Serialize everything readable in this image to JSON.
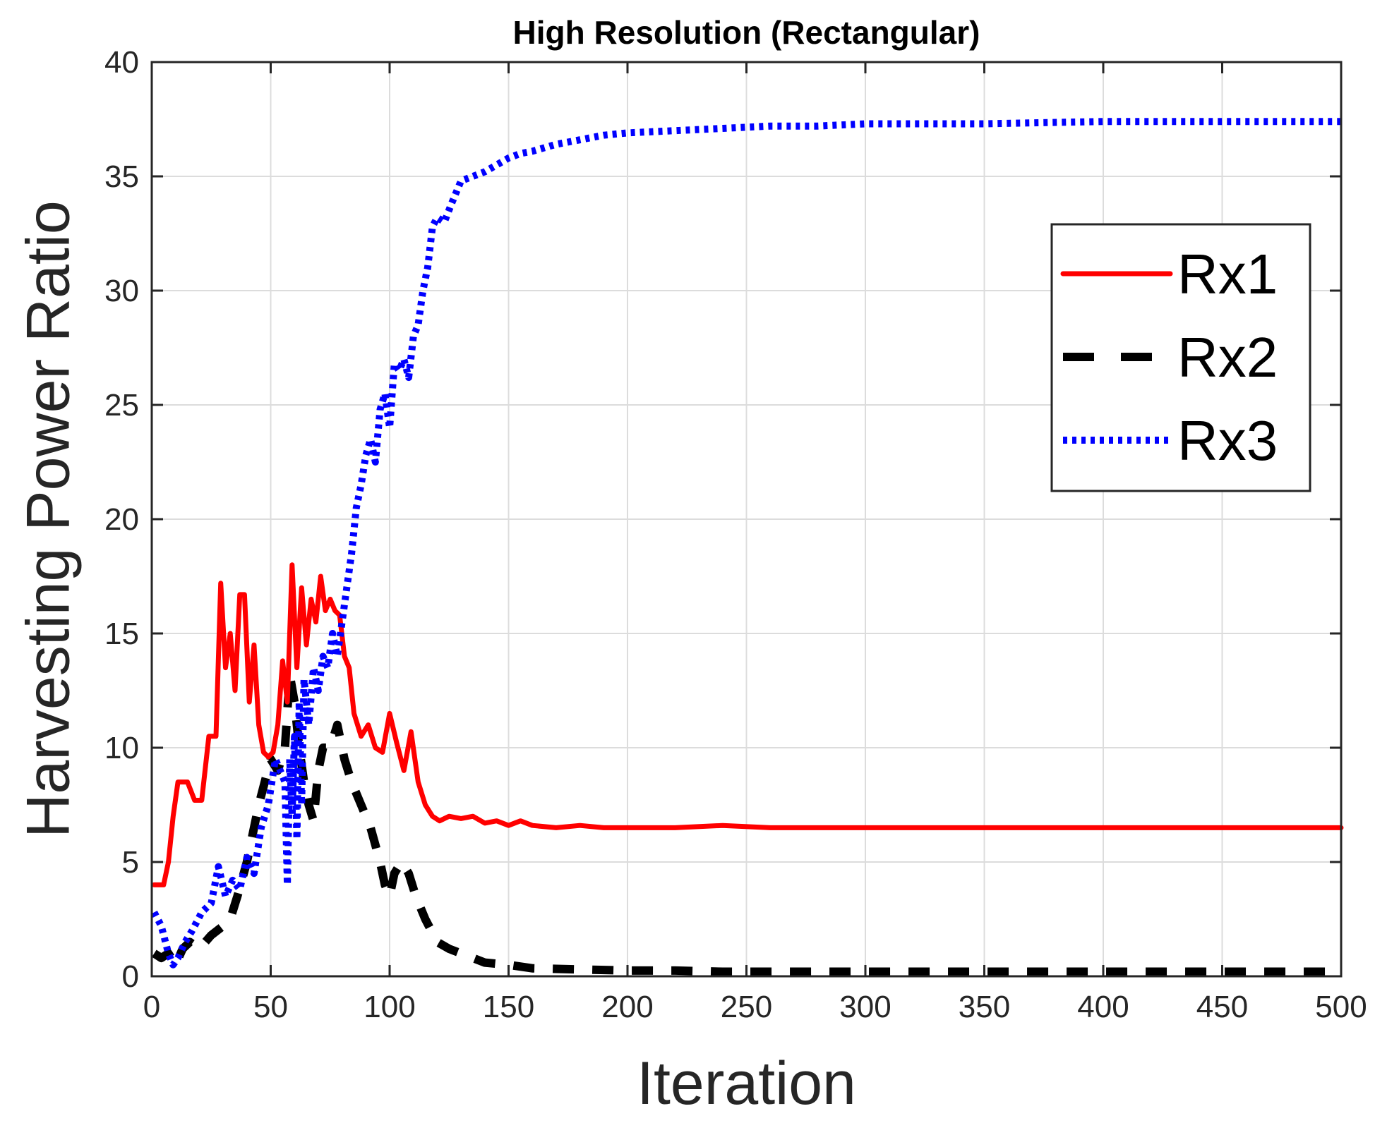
{
  "chart_data": {
    "type": "line",
    "title": "High Resolution (Rectangular)",
    "xlabel": "Iteration",
    "ylabel": "Harvesting Power Ratio",
    "xlim": [
      0,
      500
    ],
    "ylim": [
      0,
      40
    ],
    "xticks": [
      0,
      50,
      100,
      150,
      200,
      250,
      300,
      350,
      400,
      450,
      500
    ],
    "yticks": [
      0,
      5,
      10,
      15,
      20,
      25,
      30,
      35,
      40
    ],
    "grid": true,
    "legend_position": "top-right",
    "series": [
      {
        "name": "Rx1",
        "color": "#ff0000",
        "style": "solid",
        "x": [
          1,
          5,
          7,
          9,
          11,
          13,
          15,
          18,
          21,
          24,
          27,
          29,
          31,
          33,
          35,
          37,
          39,
          41,
          43,
          45,
          47,
          49,
          51,
          53,
          55,
          57,
          59,
          61,
          63,
          65,
          67,
          69,
          71,
          73,
          75,
          77,
          79,
          81,
          83,
          85,
          88,
          91,
          94,
          97,
          100,
          103,
          106,
          109,
          112,
          115,
          118,
          121,
          125,
          130,
          135,
          140,
          145,
          150,
          155,
          160,
          170,
          180,
          190,
          200,
          220,
          240,
          260,
          280,
          300,
          350,
          400,
          450,
          500
        ],
        "y": [
          4,
          4,
          5,
          7,
          8.5,
          8.5,
          8.5,
          7.7,
          7.7,
          10.5,
          10.5,
          17.2,
          13.5,
          15,
          12.5,
          16.7,
          16.7,
          12,
          14.5,
          11,
          9.8,
          9.6,
          9.8,
          11,
          13.8,
          12,
          18,
          13.5,
          17,
          14.5,
          16.5,
          15.5,
          17.5,
          16,
          16.5,
          16,
          15.8,
          14,
          13.5,
          11.5,
          10.5,
          11,
          10,
          9.8,
          11.5,
          10.2,
          9,
          10.7,
          8.5,
          7.5,
          7,
          6.8,
          7,
          6.9,
          7,
          6.7,
          6.8,
          6.6,
          6.8,
          6.6,
          6.5,
          6.6,
          6.5,
          6.5,
          6.5,
          6.6,
          6.5,
          6.5,
          6.5,
          6.5,
          6.5,
          6.5,
          6.5
        ]
      },
      {
        "name": "Rx2",
        "color": "#000000",
        "style": "dashed",
        "x": [
          1,
          4,
          7,
          10,
          13,
          16,
          20,
          25,
          30,
          33,
          36,
          40,
          45,
          50,
          53,
          56,
          58,
          60,
          62,
          64,
          66,
          68,
          70,
          72,
          75,
          78,
          81,
          84,
          88,
          92,
          96,
          98,
          100,
          102,
          105,
          108,
          111,
          115,
          120,
          125,
          130,
          135,
          140,
          150,
          160,
          180,
          200,
          220,
          240,
          260,
          300,
          350,
          400,
          450,
          500
        ],
        "y": [
          1,
          0.8,
          1,
          0.5,
          1.2,
          1.5,
          1.2,
          1.8,
          2.2,
          2.5,
          3.5,
          5,
          7.5,
          9.5,
          9,
          10,
          13.2,
          12,
          10,
          8.5,
          7.5,
          6.8,
          9,
          10,
          10,
          11,
          9.5,
          8.5,
          7.5,
          6.5,
          5,
          4,
          3.5,
          4.5,
          5,
          4.5,
          3.5,
          2.5,
          1.5,
          1.2,
          1.0,
          0.8,
          0.6,
          0.5,
          0.35,
          0.3,
          0.25,
          0.25,
          0.2,
          0.2,
          0.2,
          0.2,
          0.2,
          0.2,
          0.2
        ]
      },
      {
        "name": "Rx3",
        "color": "#0000ff",
        "style": "dotted",
        "x": [
          1,
          4,
          7,
          9,
          11,
          14,
          17,
          21,
          25,
          28,
          31,
          34,
          37,
          40,
          43,
          46,
          49,
          52,
          54,
          56,
          57,
          58,
          59,
          60,
          61,
          62,
          63,
          64,
          66,
          68,
          70,
          72,
          74,
          76,
          78,
          80,
          82,
          84,
          86,
          88,
          90,
          92,
          94,
          96,
          98,
          100,
          102,
          104,
          106,
          108,
          110,
          112,
          114,
          116,
          118,
          120,
          123,
          126,
          130,
          135,
          140,
          145,
          150,
          155,
          160,
          170,
          180,
          190,
          200,
          220,
          240,
          260,
          280,
          300,
          350,
          400,
          450,
          500
        ],
        "y": [
          2.8,
          2.2,
          1,
          0.5,
          0.8,
          1.5,
          2.0,
          2.8,
          3.2,
          4.8,
          3.5,
          4.2,
          3.8,
          5.2,
          4.5,
          6.5,
          7.5,
          9.5,
          9.0,
          8.5,
          4.0,
          9.5,
          7.0,
          10.5,
          6.0,
          12.0,
          7.5,
          13.0,
          11.0,
          13.5,
          12.5,
          14.0,
          13.5,
          15.0,
          14.0,
          15.5,
          17.0,
          18.5,
          20.5,
          21.5,
          22.8,
          23.5,
          22.5,
          24.8,
          25.5,
          24.0,
          26.8,
          26.5,
          27.0,
          26.2,
          28.0,
          28.5,
          30.0,
          31.0,
          32.8,
          33.2,
          33.0,
          33.8,
          34.8,
          35.0,
          35.2,
          35.5,
          35.8,
          36.0,
          36.1,
          36.4,
          36.6,
          36.8,
          36.9,
          37.0,
          37.1,
          37.2,
          37.2,
          37.3,
          37.3,
          37.4,
          37.4,
          37.4
        ]
      }
    ]
  }
}
